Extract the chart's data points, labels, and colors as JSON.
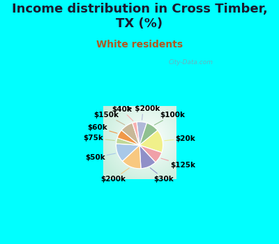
{
  "title": "Income distribution in Cross Timber,\nTX (%)",
  "subtitle": "White residents",
  "bg_cyan": "#00FFFF",
  "labels": [
    "> $200k",
    "$100k",
    "$20k",
    "$125k",
    "$30k",
    "$200k",
    "$50k",
    "$75k",
    "$60k",
    "$150k",
    "$40k"
  ],
  "values": [
    7,
    9,
    16,
    8,
    11,
    14,
    13,
    4,
    6,
    9,
    3
  ],
  "colors": [
    "#b0b8d8",
    "#90c090",
    "#f0f08a",
    "#f0a0a8",
    "#9090c8",
    "#f8c880",
    "#a8c8e8",
    "#c0d898",
    "#f09848",
    "#c8b898",
    "#f8b0b0"
  ],
  "startangle": 97,
  "counterclock": false,
  "watermark": "City-Data.com",
  "title_fontsize": 13,
  "subtitle_fontsize": 10,
  "label_fontsize": 7.5
}
